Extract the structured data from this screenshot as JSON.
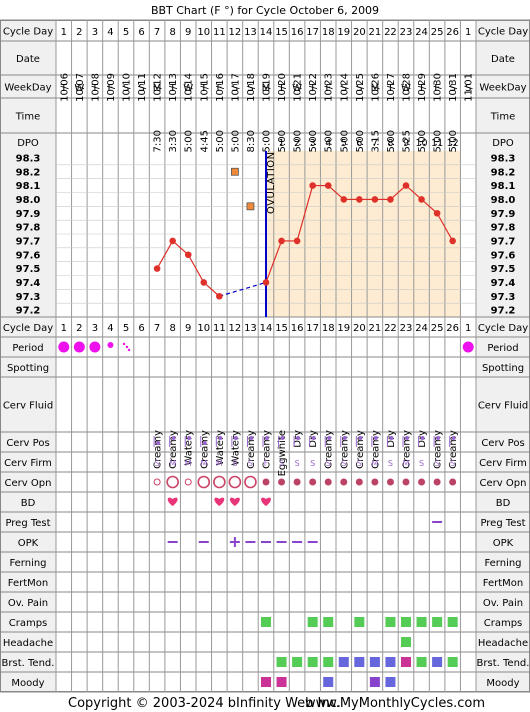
{
  "chart_data": {
    "type": "line",
    "title": "BBT Chart (F °) for Cycle October 6, 2009",
    "cycle_days": [
      1,
      2,
      3,
      4,
      5,
      6,
      7,
      8,
      9,
      10,
      11,
      12,
      13,
      14,
      15,
      16,
      17,
      18,
      19,
      20,
      21,
      22,
      23,
      24,
      25,
      26,
      1
    ],
    "dates": [
      "10/06",
      "10/07",
      "10/08",
      "10/09",
      "10/10",
      "10/11",
      "10/12",
      "10/13",
      "10/14",
      "10/15",
      "10/16",
      "10/17",
      "10/18",
      "10/19",
      "10/20",
      "10/21",
      "10/22",
      "10/23",
      "10/24",
      "10/25",
      "10/26",
      "10/27",
      "10/28",
      "10/29",
      "10/30",
      "10/31",
      "11/01"
    ],
    "weekdays": [
      "T",
      "W",
      "T",
      "F",
      "S",
      "S",
      "M",
      "T",
      "W",
      "T",
      "F",
      "S",
      "S",
      "M",
      "T",
      "W",
      "T",
      "F",
      "S",
      "S",
      "M",
      "T",
      "W",
      "T",
      "F",
      "S",
      "S"
    ],
    "times": [
      "",
      "",
      "",
      "",
      "",
      "",
      "7:30",
      "3:30",
      "5:00",
      "4:45",
      "5:00",
      "5:00",
      "8:30",
      "5:00",
      "5:00",
      "5:00",
      "5:00",
      "5:00",
      "5:00",
      "5:00",
      "3:15",
      "5:00",
      "5:25",
      "5:00",
      "5:00",
      "5:00",
      ""
    ],
    "dpo": [
      "",
      "",
      "",
      "",
      "",
      "",
      "",
      "",
      "",
      "",
      "",
      "",
      "",
      "",
      "1",
      "2",
      "3",
      "4",
      "5",
      "6",
      "7",
      "8",
      "9",
      "10",
      "11",
      "12",
      ""
    ],
    "y_ticks": [
      "98.3",
      "98.2",
      "98.1",
      "98.0",
      "97.9",
      "97.8",
      "97.7",
      "97.6",
      "97.5",
      "97.4",
      "97.3",
      "97.2"
    ],
    "ylim": [
      97.15,
      98.35
    ],
    "temps": [
      null,
      null,
      null,
      null,
      null,
      null,
      97.5,
      97.7,
      97.6,
      97.4,
      97.3,
      98.2,
      97.95,
      97.4,
      97.7,
      97.7,
      98.1,
      98.1,
      98.0,
      98.0,
      98.0,
      98.0,
      98.1,
      98.0,
      97.9,
      97.7,
      null
    ],
    "discarded_days": [
      12,
      13
    ],
    "ovulation_day": 14,
    "ovulation_label": "OVULATION",
    "period": [
      "heavy",
      "heavy",
      "heavy",
      "medium",
      "light",
      "",
      "",
      "",
      "",
      "",
      "",
      "",
      "",
      "",
      "",
      "",
      "",
      "",
      "",
      "",
      "",
      "",
      "",
      "",
      "",
      "",
      "heavy"
    ],
    "cerv_fluid": [
      "",
      "",
      "",
      "",
      "",
      "",
      "Creamy",
      "Creamy",
      "Watery",
      "Creamy",
      "Watery",
      "Watery",
      "Creamy",
      "Creamy",
      "Eggwhite",
      "Dry",
      "Dry",
      "Creamy",
      "Creamy",
      "Creamy",
      "Creamy",
      "Dry",
      "Creamy",
      "Dry",
      "Creamy",
      "Creamy",
      ""
    ],
    "cerv_pos": [
      "",
      "",
      "",
      "",
      "",
      "",
      "low",
      "high",
      "high",
      "low",
      "high",
      "high",
      "high",
      "high",
      "high",
      "high",
      "high",
      "high",
      "high",
      "high",
      "high",
      "high",
      "high",
      "high",
      "high",
      "high",
      ""
    ],
    "cerv_firm": [
      "",
      "",
      "",
      "",
      "",
      "",
      "S",
      "M",
      "M",
      "M",
      "M",
      "S",
      "S",
      "F",
      "S",
      "S",
      "S",
      "S",
      "S",
      "S",
      "M",
      "S",
      "M",
      "S",
      "S",
      "S",
      ""
    ],
    "cerv_opn": [
      "",
      "",
      "",
      "",
      "",
      "",
      "small",
      "large",
      "small",
      "large",
      "large",
      "large",
      "large",
      "medium",
      "medium",
      "medium",
      "medium",
      "medium",
      "medium",
      "medium",
      "medium",
      "medium",
      "medium",
      "medium",
      "medium",
      "medium",
      ""
    ],
    "bd": [
      "",
      "",
      "",
      "",
      "",
      "",
      "",
      "yes",
      "",
      "",
      "yes",
      "yes",
      "",
      "yes",
      "",
      "",
      "",
      "",
      "",
      "",
      "",
      "",
      "",
      "",
      "",
      "",
      ""
    ],
    "preg_test": [
      "",
      "",
      "",
      "",
      "",
      "",
      "",
      "",
      "",
      "",
      "",
      "",
      "",
      "",
      "",
      "",
      "",
      "",
      "",
      "",
      "",
      "",
      "",
      "",
      "neg",
      "",
      ""
    ],
    "opk": [
      "",
      "",
      "",
      "",
      "",
      "",
      "",
      "neg",
      "",
      "neg",
      "",
      "pos",
      "neg",
      "neg",
      "neg",
      "neg",
      "neg",
      "",
      "",
      "",
      "",
      "",
      "",
      "",
      "",
      "",
      ""
    ],
    "cramps": [
      0,
      0,
      0,
      0,
      0,
      0,
      0,
      0,
      0,
      0,
      0,
      0,
      0,
      1,
      0,
      0,
      1,
      1,
      0,
      1,
      0,
      1,
      1,
      1,
      1,
      1,
      0
    ],
    "headache": [
      0,
      0,
      0,
      0,
      0,
      0,
      0,
      0,
      0,
      0,
      0,
      0,
      0,
      0,
      0,
      0,
      0,
      0,
      0,
      0,
      0,
      0,
      1,
      0,
      0,
      0,
      0
    ],
    "breast": [
      "",
      "",
      "",
      "",
      "",
      "",
      "",
      "",
      "",
      "",
      "",
      "",
      "",
      "",
      "green",
      "green",
      "green",
      "green",
      "blue",
      "blue",
      "blue",
      "blue",
      "pink",
      "green",
      "blue",
      "green",
      ""
    ],
    "moody": [
      "",
      "",
      "",
      "",
      "",
      "",
      "",
      "",
      "",
      "",
      "",
      "",
      "",
      "pink",
      "pink",
      "",
      "",
      "blue",
      "",
      "",
      "purple",
      "blue",
      "",
      "",
      "",
      "",
      ""
    ],
    "rows": {
      "cycle_day": "Cycle Day",
      "date": "Date",
      "weekday": "WeekDay",
      "time": "Time",
      "dpo": "DPO",
      "period": "Period",
      "spotting": "Spotting",
      "cerv_fluid": "Cerv Fluid",
      "cerv_pos": "Cerv Pos",
      "cerv_firm": "Cerv Firm",
      "cerv_opn": "Cerv Opn",
      "bd": "BD",
      "preg_test": "Preg Test",
      "opk": "OPK",
      "ferning": "Ferning",
      "fertmon": "FertMon",
      "ov_pain": "Ov. Pain",
      "cramps": "Cramps",
      "headache": "Headache",
      "brst_tend": "Brst. Tend.",
      "moody": "Moody"
    },
    "colors": {
      "line": "#e0302a",
      "ovulation": "#0000cc",
      "post_ovulation_fill": "#fdecd2",
      "grid": "#c8c8c8",
      "label_bg": "#f0f0f0",
      "period": "#ee11ee",
      "cerv": "#9966cc",
      "green": "#55cc55",
      "blue": "#6666dd",
      "pink": "#cc3399",
      "purple": "#8844cc"
    }
  },
  "footer": {
    "copyright": "Copyright © 2003-2024 bInfinity Web Inc.",
    "site": "www.MyMonthlyCycles.com"
  }
}
